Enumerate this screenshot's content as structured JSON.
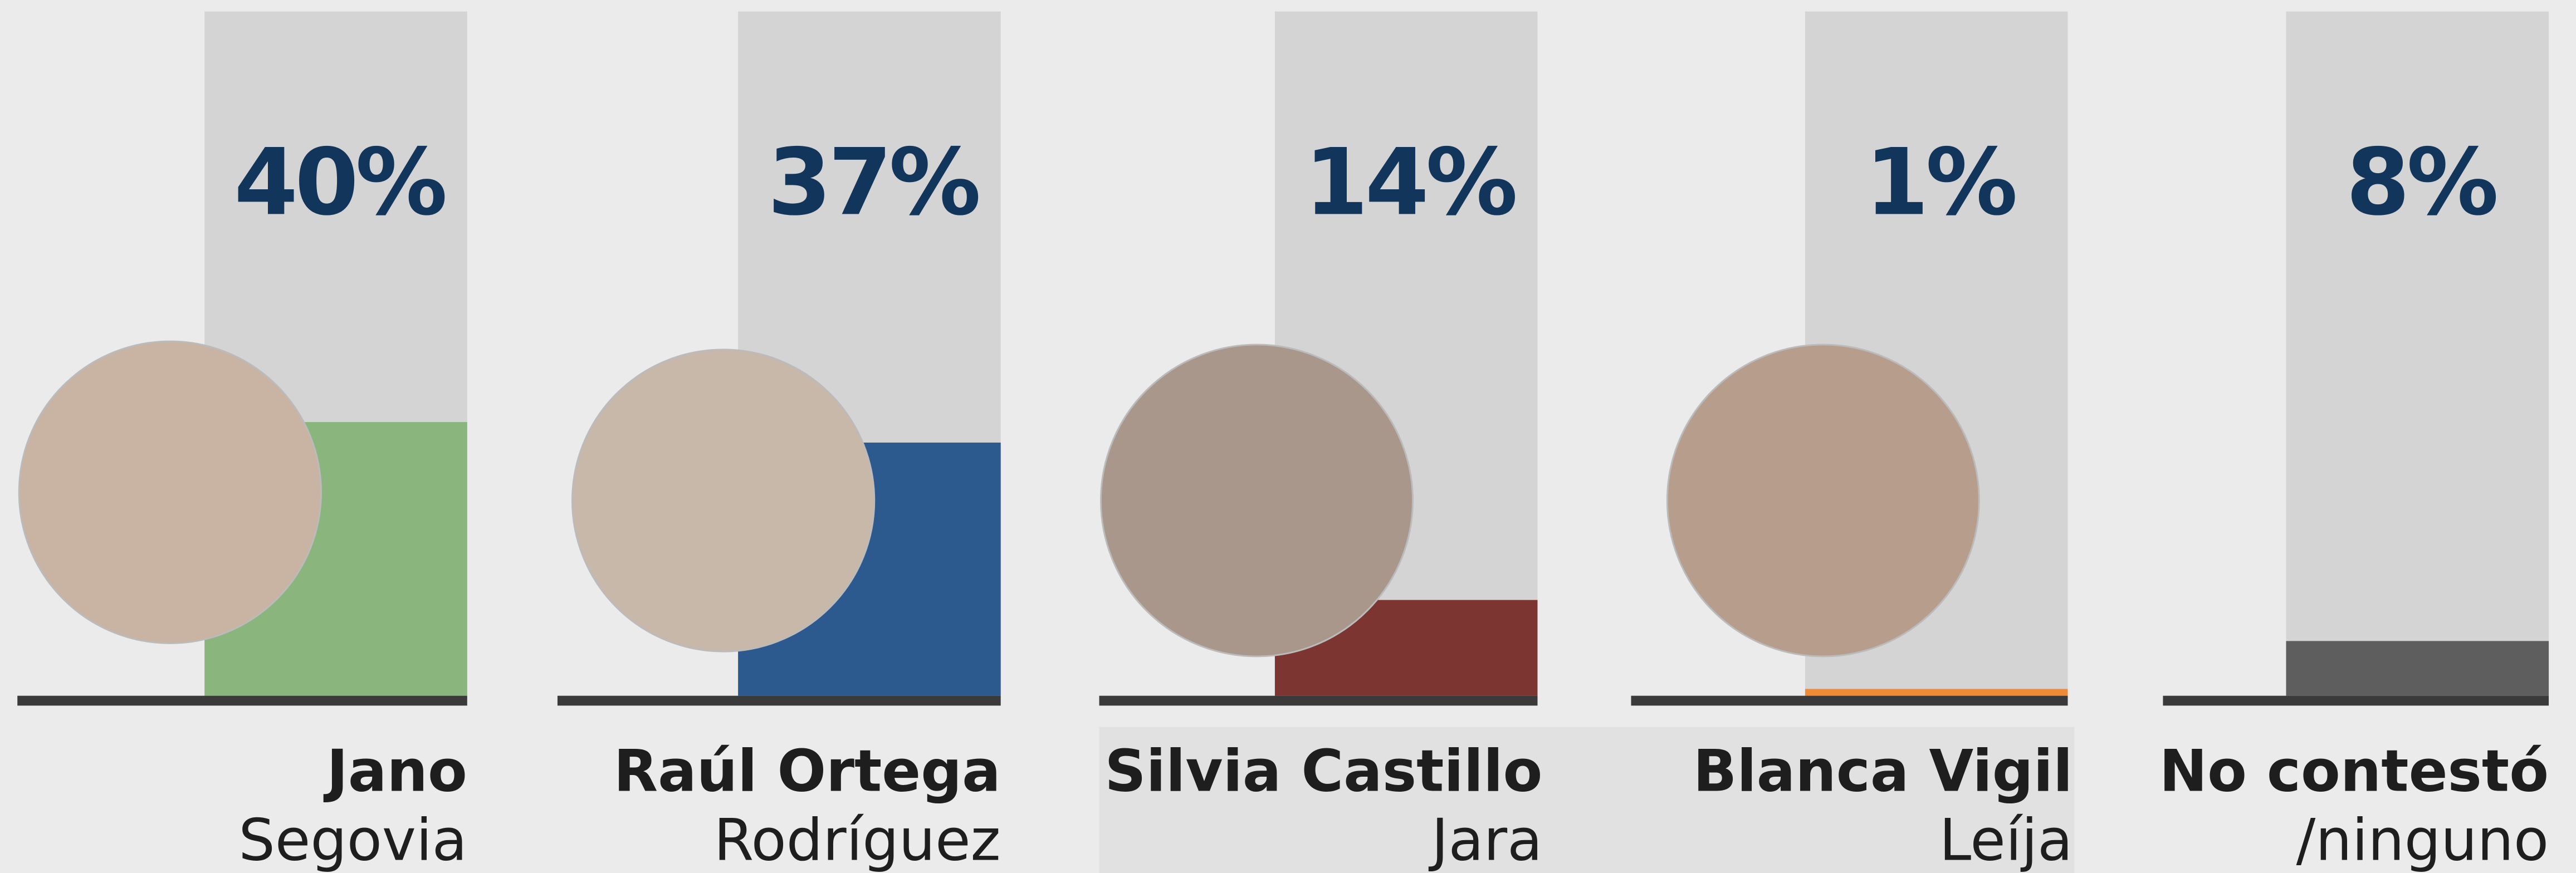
{
  "chart_data": {
    "type": "bar",
    "categories": [
      [
        "Jano",
        "Segovia"
      ],
      [
        "Raúl Ortega",
        "Rodríguez"
      ],
      [
        "Silvia Castillo",
        "Jara"
      ],
      [
        "Blanca Vigil",
        "Leíja"
      ],
      [
        "No contestó",
        "/ninguno"
      ]
    ],
    "values": [
      40,
      37,
      14,
      1,
      8
    ],
    "value_labels": [
      "40%",
      "37%",
      "14%",
      "1%",
      "8%"
    ],
    "colors": [
      "#8ab57c",
      "#2d5a8e",
      "#7c3530",
      "#ef8a36",
      "#5e5e5e"
    ],
    "ylim": [
      0,
      100
    ]
  }
}
